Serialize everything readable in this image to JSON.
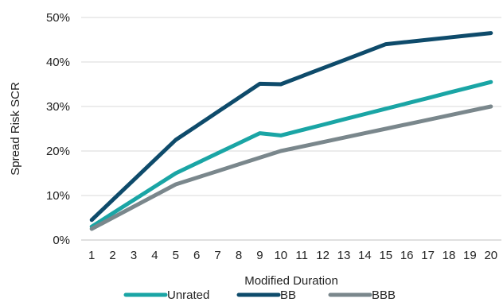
{
  "chart_data": {
    "type": "line",
    "title": "",
    "xlabel": "Modified Duration",
    "ylabel": "Spread Risk SCR",
    "x": [
      1,
      2,
      3,
      4,
      5,
      6,
      7,
      8,
      9,
      10,
      11,
      12,
      13,
      14,
      15,
      16,
      17,
      18,
      19,
      20
    ],
    "x_tick_labels": [
      "1",
      "2",
      "3",
      "4",
      "5",
      "6",
      "7",
      "8",
      "9",
      "10",
      "11",
      "12",
      "13",
      "14",
      "15",
      "16",
      "17",
      "18",
      "19",
      "20"
    ],
    "ylim": [
      0,
      0.5
    ],
    "y_ticks": [
      0,
      0.1,
      0.2,
      0.3,
      0.4,
      0.5
    ],
    "y_tick_labels": [
      "0%",
      "10%",
      "20%",
      "30%",
      "40%",
      "50%"
    ],
    "grid": "horizontal",
    "legend_position": "bottom",
    "series": [
      {
        "name": "Unrated",
        "color": "#1aa5a5",
        "values": [
          0.03,
          0.06,
          0.09,
          0.12,
          0.15,
          0.1725,
          0.195,
          0.2175,
          0.24,
          0.235,
          0.247,
          0.259,
          0.271,
          0.283,
          0.295,
          0.307,
          0.319,
          0.331,
          0.343,
          0.355
        ]
      },
      {
        "name": "BB",
        "color": "#0e4b6b",
        "values": [
          0.045,
          0.09,
          0.135,
          0.18,
          0.225,
          0.2565,
          0.288,
          0.3195,
          0.351,
          0.35,
          0.368,
          0.386,
          0.404,
          0.422,
          0.44,
          0.445,
          0.45,
          0.455,
          0.46,
          0.465
        ]
      },
      {
        "name": "BBB",
        "color": "#7a878c",
        "values": [
          0.025,
          0.05,
          0.075,
          0.1,
          0.125,
          0.14,
          0.155,
          0.17,
          0.185,
          0.2,
          0.21,
          0.22,
          0.23,
          0.24,
          0.25,
          0.26,
          0.27,
          0.28,
          0.29,
          0.3
        ]
      }
    ]
  }
}
